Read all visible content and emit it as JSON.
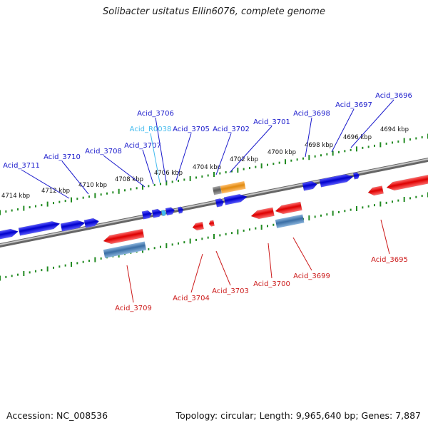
{
  "title": "Solibacter usitatus Ellin6076, complete genome",
  "footer": {
    "accession": "Accession: NC_008536",
    "summary": "Topology: circular; Length: 9,965,640 bp; Genes: 7,887"
  },
  "colors": {
    "forward_gene": "#0a0ae6",
    "reverse_gene": "#e60a0a",
    "forward_label": "#1a1acc",
    "reverse_label": "#cc1a1a",
    "rna": "#44bbee",
    "cds_highlight": "#e8901a",
    "cds_blue": "#4a7fb5",
    "backbone": "#888888",
    "tick": "#228b22"
  },
  "ruler_labels": [
    "4714 kbp",
    "4712 kbp",
    "4710 kbp",
    "4708 kbp",
    "4706 kbp",
    "4704 kbp",
    "4702 kbp",
    "4700 kbp",
    "4698 kbp",
    "4696 kbp",
    "4694 kbp"
  ],
  "forward_labels": [
    "Acid_3711",
    "Acid_3710",
    "Acid_3708",
    "Acid_3707",
    "Acid_R0038",
    "Acid_3706",
    "Acid_3705",
    "Acid_3702",
    "Acid_3701",
    "Acid_3698",
    "Acid_3697",
    "Acid_3696"
  ],
  "reverse_labels": [
    "Acid_3709",
    "Acid_3704",
    "Acid_3703",
    "Acid_3700",
    "Acid_3699",
    "Acid_3695"
  ]
}
